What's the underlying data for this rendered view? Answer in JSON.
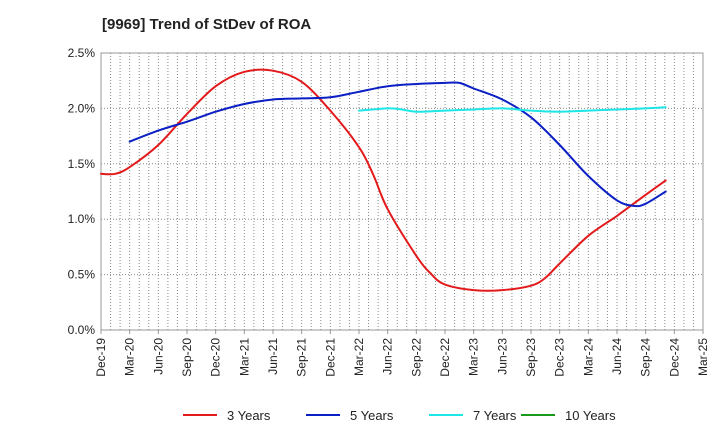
{
  "chart_data": {
    "type": "line",
    "title": "[9969]  Trend of StDev of ROA",
    "xlabel": "",
    "ylabel": "",
    "x_tick_labels": [
      "Dec-19",
      "Mar-20",
      "Jun-20",
      "Sep-20",
      "Dec-20",
      "Mar-21",
      "Jun-21",
      "Sep-21",
      "Dec-21",
      "Mar-22",
      "Jun-22",
      "Sep-22",
      "Dec-22",
      "Mar-23",
      "Jun-23",
      "Sep-23",
      "Dec-23",
      "Mar-24",
      "Jun-24",
      "Sep-24",
      "Dec-24",
      "Mar-25"
    ],
    "y_tick_labels": [
      "0.0%",
      "0.5%",
      "1.0%",
      "1.5%",
      "2.0%",
      "2.5%"
    ],
    "ylim": [
      0,
      2.5
    ],
    "grid": true,
    "legend_position": "bottom",
    "series": [
      {
        "name": "3 Years",
        "color": "#e31a1c",
        "points": [
          [
            0,
            1.41
          ],
          [
            0.5,
            1.41
          ],
          [
            1,
            1.47
          ],
          [
            2,
            1.67
          ],
          [
            3,
            1.95
          ],
          [
            4,
            2.2
          ],
          [
            5,
            2.33
          ],
          [
            6,
            2.34
          ],
          [
            7,
            2.24
          ],
          [
            8,
            1.98
          ],
          [
            9,
            1.65
          ],
          [
            9.5,
            1.4
          ],
          [
            10,
            1.09
          ],
          [
            11,
            0.67
          ],
          [
            11.5,
            0.51
          ],
          [
            12,
            0.41
          ],
          [
            13,
            0.36
          ],
          [
            14,
            0.36
          ],
          [
            15,
            0.4
          ],
          [
            15.5,
            0.47
          ],
          [
            16,
            0.6
          ],
          [
            17,
            0.85
          ],
          [
            18,
            1.03
          ],
          [
            19,
            1.22
          ],
          [
            19.7,
            1.35
          ]
        ]
      },
      {
        "name": "5 Years",
        "color": "#0a1fc4",
        "points": [
          [
            1,
            1.7
          ],
          [
            2,
            1.8
          ],
          [
            3,
            1.88
          ],
          [
            4,
            1.97
          ],
          [
            5,
            2.04
          ],
          [
            6,
            2.08
          ],
          [
            7,
            2.09
          ],
          [
            8,
            2.1
          ],
          [
            9,
            2.15
          ],
          [
            10,
            2.2
          ],
          [
            11,
            2.22
          ],
          [
            12,
            2.23
          ],
          [
            12.5,
            2.23
          ],
          [
            13,
            2.18
          ],
          [
            14,
            2.08
          ],
          [
            15,
            1.92
          ],
          [
            16,
            1.67
          ],
          [
            17,
            1.39
          ],
          [
            18,
            1.17
          ],
          [
            18.6,
            1.12
          ],
          [
            19,
            1.14
          ],
          [
            19.7,
            1.25
          ]
        ]
      },
      {
        "name": "7 Years",
        "color": "#1de6e6",
        "points": [
          [
            9,
            1.98
          ],
          [
            10,
            2.0
          ],
          [
            10.5,
            1.99
          ],
          [
            11,
            1.97
          ],
          [
            12,
            1.98
          ],
          [
            13,
            1.99
          ],
          [
            14,
            2.0
          ],
          [
            15,
            1.98
          ],
          [
            16,
            1.97
          ],
          [
            17,
            1.98
          ],
          [
            18,
            1.99
          ],
          [
            19,
            2.0
          ],
          [
            19.7,
            2.01
          ]
        ]
      },
      {
        "name": "10 Years",
        "color": "#1a9a1a",
        "points": []
      }
    ]
  }
}
